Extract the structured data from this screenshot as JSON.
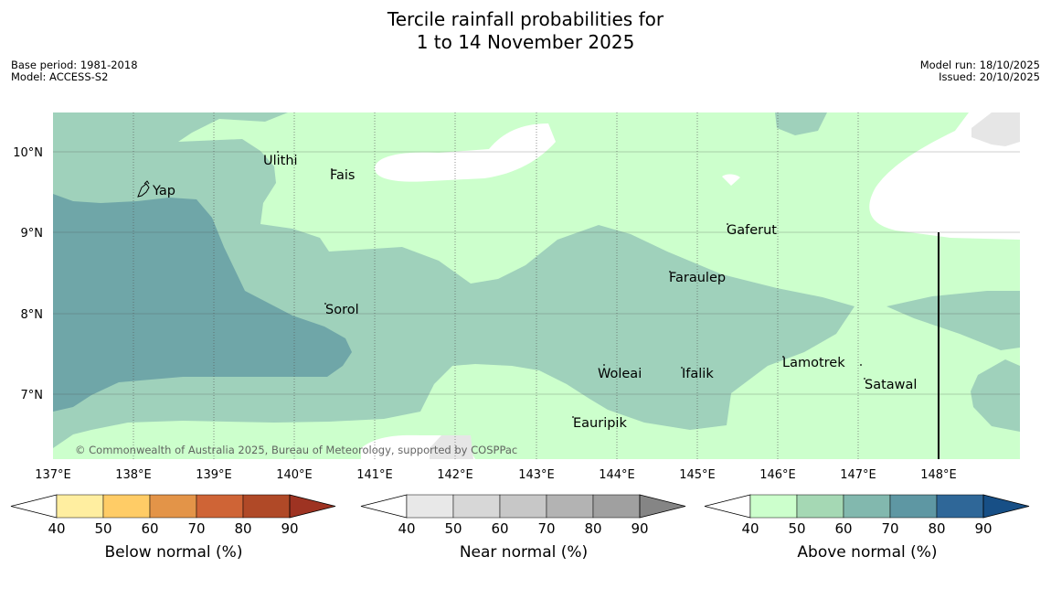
{
  "title_line1": "Tercile rainfall probabilities for",
  "title_line2": "1 to 14 November 2025",
  "meta_left": [
    "Base period: 1981-2018",
    "Model: ACCESS-S2"
  ],
  "meta_right": [
    "Model run: 18/10/2025",
    "Issued: 20/10/2025"
  ],
  "copyright": "© Commonwealth of Australia 2025, Bureau of Meteorology, supported by COSPPac",
  "lon_ticks": [
    "137°E",
    "138°E",
    "139°E",
    "140°E",
    "141°E",
    "142°E",
    "143°E",
    "144°E",
    "145°E",
    "146°E",
    "147°E",
    "148°E"
  ],
  "lat_ticks": [
    "10°N",
    "9°N",
    "8°N",
    "7°N"
  ],
  "places": [
    {
      "name": "Yap"
    },
    {
      "name": "Ulithi"
    },
    {
      "name": "Fais"
    },
    {
      "name": "Gaferut"
    },
    {
      "name": "Faraulep"
    },
    {
      "name": "Sorol"
    },
    {
      "name": "Woleai"
    },
    {
      "name": "Ifalik"
    },
    {
      "name": "Lamotrek"
    },
    {
      "name": "Satawal"
    },
    {
      "name": "Eauripik"
    }
  ],
  "colorbars": [
    {
      "label": "Below normal (%)",
      "ticks": [
        "40",
        "50",
        "60",
        "70",
        "80",
        "90"
      ],
      "colors": [
        "#ffeea0",
        "#ffcc66",
        "#e39448",
        "#cf6436",
        "#b04927"
      ],
      "high": "#9e3322"
    },
    {
      "label": "Near normal (%)",
      "ticks": [
        "40",
        "50",
        "60",
        "70",
        "80",
        "90"
      ],
      "colors": [
        "#e8e8e8",
        "#d7d7d7",
        "#c7c7c7",
        "#b3b3b3",
        "#a0a0a0"
      ],
      "high": "#858585"
    },
    {
      "label": "Above normal (%)",
      "ticks": [
        "40",
        "50",
        "60",
        "70",
        "80",
        "90"
      ],
      "colors": [
        "#ccffcc",
        "#a5d8b4",
        "#82b8ae",
        "#5e97a3",
        "#2f6798"
      ],
      "high": "#174f86"
    }
  ],
  "map_colors": {
    "above_40_50": "#ccffcc",
    "above_50_60": "#9fd1bb",
    "above_60_70": "#6fa6a8",
    "near_40_50": "#e6e6e6",
    "none": "#ffffff"
  }
}
